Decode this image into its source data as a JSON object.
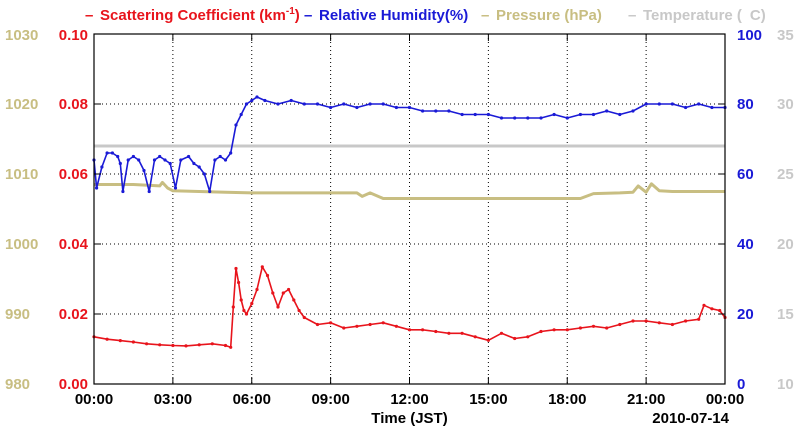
{
  "chart_data": {
    "type": "line",
    "legend": [
      {
        "key": "scat",
        "text_main": "Scattering Coefficient (km",
        "text_sup": "-1",
        "text_tail": ")",
        "color": "#e8141c"
      },
      {
        "key": "rh",
        "text_main": "Relative Humidity(%)",
        "color": "#1a1ad6"
      },
      {
        "key": "pres",
        "text_main": "Pressure (hPa)",
        "color": "#c8be82"
      },
      {
        "key": "temp",
        "text_main": "Temperature (",
        "text_tail": "C)",
        "color": "#c8c8c8"
      }
    ],
    "x_ticks": [
      "00:00",
      "03:00",
      "06:00",
      "09:00",
      "12:00",
      "15:00",
      "18:00",
      "21:00",
      "00:00"
    ],
    "x_range_hours": [
      0,
      24
    ],
    "xlabel": "Time (JST)",
    "date_label": "2010-07-14",
    "axes": {
      "pressure": {
        "ticks": [
          "980",
          "990",
          "1000",
          "1010",
          "1020",
          "1030"
        ],
        "range": [
          980,
          1030
        ],
        "color": "#c8be82"
      },
      "scattering": {
        "ticks": [
          "0.00",
          "0.02",
          "0.04",
          "0.06",
          "0.08",
          "0.10"
        ],
        "range": [
          0,
          0.1
        ],
        "color": "#e8141c"
      },
      "humidity": {
        "ticks": [
          "0",
          "20",
          "40",
          "60",
          "80",
          "100"
        ],
        "range": [
          0,
          100
        ],
        "color": "#1a1ad6"
      },
      "temperature": {
        "ticks": [
          "10",
          "15",
          "20",
          "25",
          "30",
          "35"
        ],
        "range": [
          10,
          35
        ],
        "color": "#c8c8c8"
      }
    },
    "grid": true,
    "series": [
      {
        "name": "Scattering Coefficient",
        "axis": "scattering",
        "x": [
          0,
          0.5,
          1,
          1.5,
          2,
          2.5,
          3,
          3.5,
          4,
          4.5,
          5,
          5.2,
          5.3,
          5.4,
          5.5,
          5.6,
          5.7,
          5.8,
          6.0,
          6.2,
          6.4,
          6.6,
          6.8,
          7.0,
          7.2,
          7.4,
          7.6,
          7.8,
          8.0,
          8.5,
          9.0,
          9.5,
          10,
          10.5,
          11,
          11.5,
          12,
          12.5,
          13,
          13.5,
          14,
          14.5,
          15,
          15.5,
          16,
          16.5,
          17,
          17.5,
          18,
          18.5,
          19,
          19.5,
          20,
          20.5,
          21,
          21.5,
          22,
          22.5,
          23,
          23.2,
          23.5,
          23.8,
          24
        ],
        "y": [
          0.0135,
          0.0128,
          0.0124,
          0.012,
          0.0115,
          0.0112,
          0.011,
          0.0109,
          0.0112,
          0.0115,
          0.011,
          0.0105,
          0.022,
          0.033,
          0.029,
          0.024,
          0.021,
          0.02,
          0.023,
          0.027,
          0.0335,
          0.031,
          0.026,
          0.022,
          0.026,
          0.027,
          0.024,
          0.021,
          0.019,
          0.017,
          0.0175,
          0.016,
          0.0165,
          0.017,
          0.0175,
          0.0165,
          0.0155,
          0.0155,
          0.015,
          0.0145,
          0.0145,
          0.0135,
          0.0125,
          0.0145,
          0.013,
          0.0135,
          0.015,
          0.0155,
          0.0155,
          0.016,
          0.0165,
          0.016,
          0.017,
          0.018,
          0.018,
          0.0175,
          0.017,
          0.018,
          0.0185,
          0.0225,
          0.0215,
          0.021,
          0.019
        ]
      },
      {
        "name": "Relative Humidity",
        "axis": "humidity",
        "x": [
          0,
          0.1,
          0.3,
          0.5,
          0.7,
          0.9,
          1.0,
          1.1,
          1.3,
          1.5,
          1.7,
          1.9,
          2.1,
          2.3,
          2.5,
          2.7,
          2.9,
          3.1,
          3.3,
          3.6,
          3.8,
          4.0,
          4.2,
          4.4,
          4.6,
          4.8,
          5.0,
          5.2,
          5.4,
          5.6,
          5.8,
          6.0,
          6.2,
          6.5,
          7,
          7.5,
          8,
          8.5,
          9,
          9.5,
          10,
          10.5,
          11,
          11.5,
          12,
          12.5,
          13,
          13.5,
          14,
          14.5,
          15,
          15.5,
          16,
          16.5,
          17,
          17.5,
          18,
          18.5,
          19,
          19.5,
          20,
          20.5,
          21,
          21.5,
          22,
          22.5,
          23,
          23.5,
          24
        ],
        "y": [
          64,
          56,
          62,
          66,
          66,
          65,
          63,
          55,
          64,
          65,
          64,
          61,
          55,
          64,
          65,
          64,
          63,
          56,
          64,
          65,
          63,
          62,
          60,
          55,
          64,
          65,
          64,
          66,
          74,
          77,
          80,
          81,
          82,
          81,
          80,
          81,
          80,
          80,
          79,
          80,
          79,
          80,
          80,
          79,
          79,
          78,
          78,
          78,
          77,
          77,
          77,
          76,
          76,
          76,
          76,
          77,
          76,
          77,
          77,
          78,
          77,
          78,
          80,
          80,
          80,
          79,
          80,
          79,
          79
        ]
      },
      {
        "name": "Pressure",
        "axis": "pressure",
        "x": [
          0,
          1.5,
          2.5,
          2.6,
          2.8,
          3.0,
          5,
          6,
          8,
          9.5,
          10,
          10.2,
          10.5,
          11,
          11.5,
          12,
          14,
          16,
          18,
          18.5,
          19,
          20,
          20.5,
          20.7,
          21,
          21.2,
          21.5,
          22,
          24
        ],
        "y": [
          1008.5,
          1008.5,
          1008.3,
          1008.8,
          1008.0,
          1007.6,
          1007.4,
          1007.3,
          1007.3,
          1007.3,
          1007.3,
          1006.8,
          1007.3,
          1006.5,
          1006.5,
          1006.5,
          1006.5,
          1006.5,
          1006.5,
          1006.5,
          1007.2,
          1007.3,
          1007.4,
          1008.3,
          1007.4,
          1008.6,
          1007.6,
          1007.5,
          1007.5
        ]
      },
      {
        "name": "Temperature",
        "axis": "temperature",
        "x": [
          0,
          24
        ],
        "y": [
          27,
          27
        ]
      }
    ]
  }
}
